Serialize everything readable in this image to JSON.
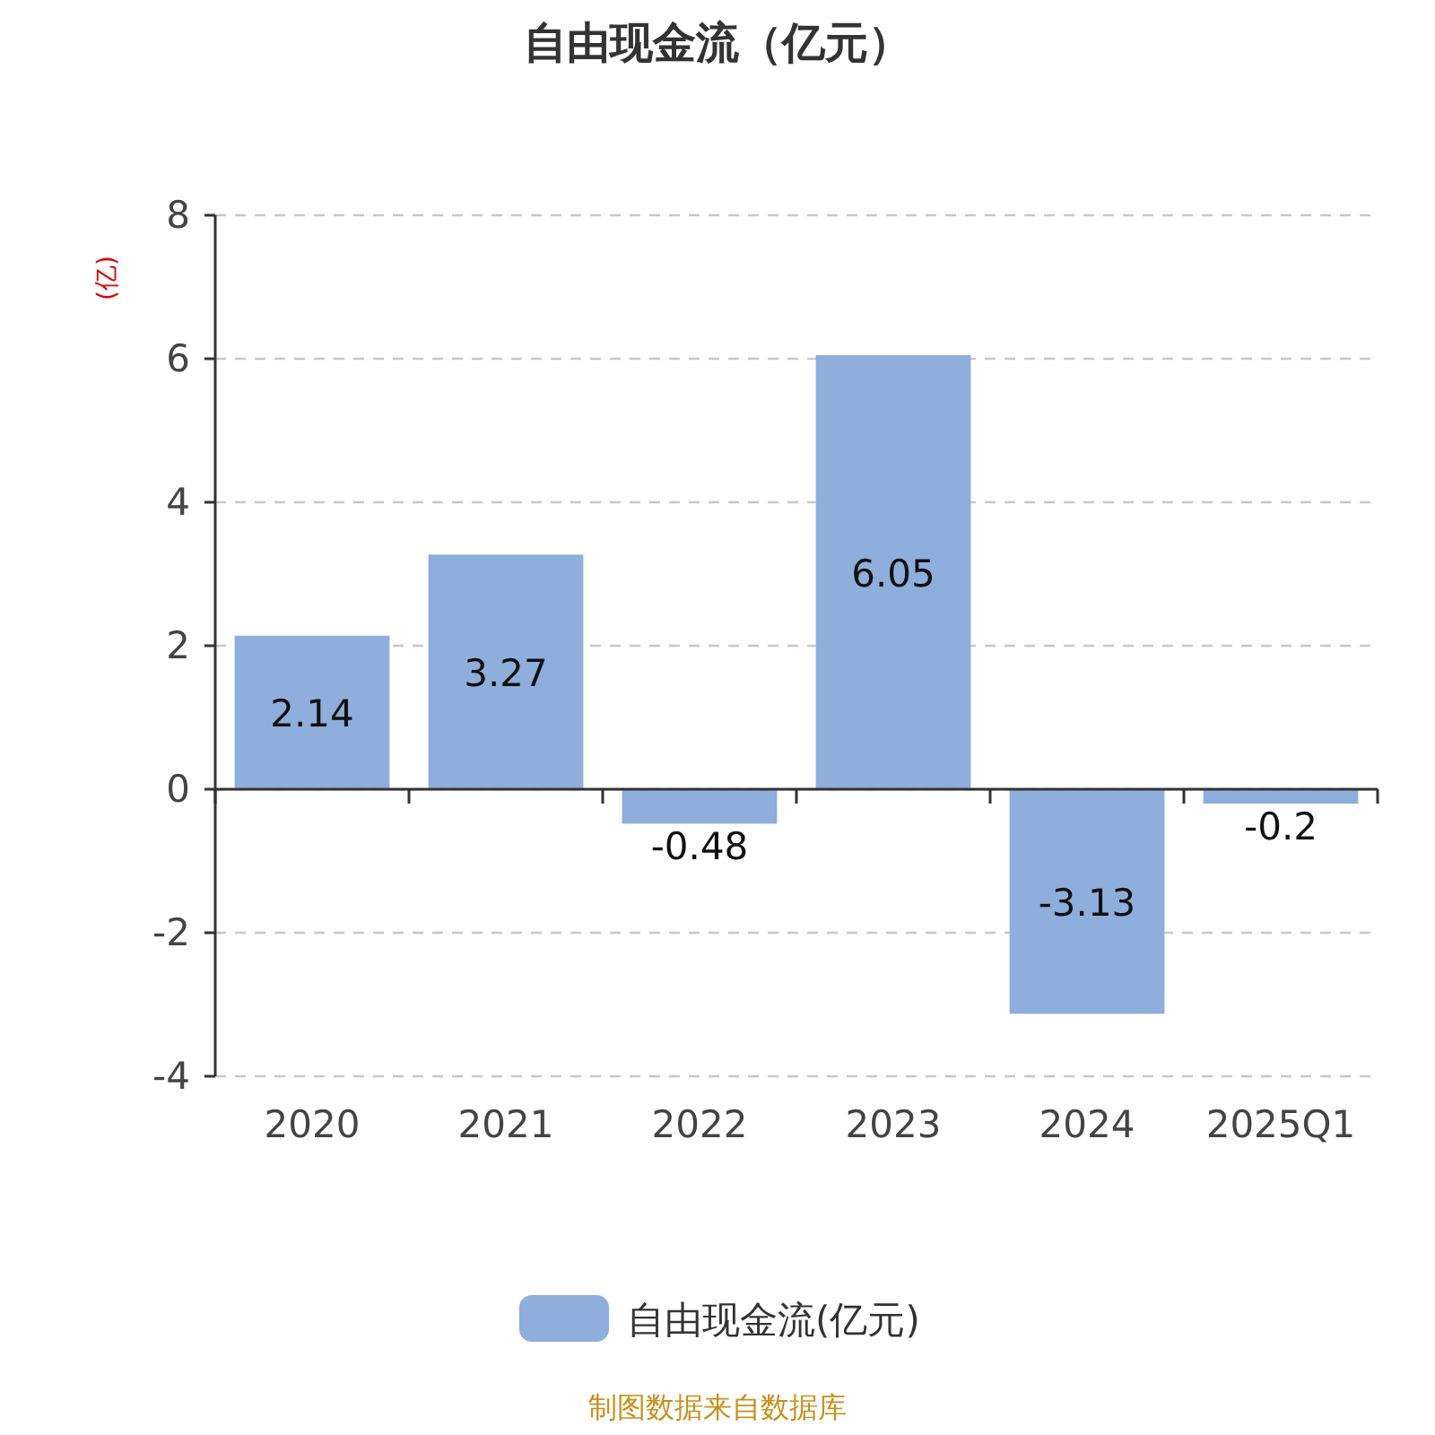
{
  "chart_data": {
    "type": "bar",
    "title": "自由现金流（亿元）",
    "ylabel": "(亿)",
    "categories": [
      "2020",
      "2021",
      "2022",
      "2023",
      "2024",
      "2025Q1"
    ],
    "series": [
      {
        "name": "自由现金流(亿元)",
        "color": "#8eaedb",
        "values": [
          2.14,
          3.27,
          -0.48,
          6.05,
          -3.13,
          -0.2
        ]
      }
    ],
    "ylim": [
      -4,
      8
    ],
    "yticks": [
      -4,
      -2,
      0,
      2,
      4,
      6,
      8
    ],
    "grid": "y",
    "legend": "bottom",
    "data_labels": true,
    "annotations": [
      "制图数据来自数据库"
    ]
  }
}
